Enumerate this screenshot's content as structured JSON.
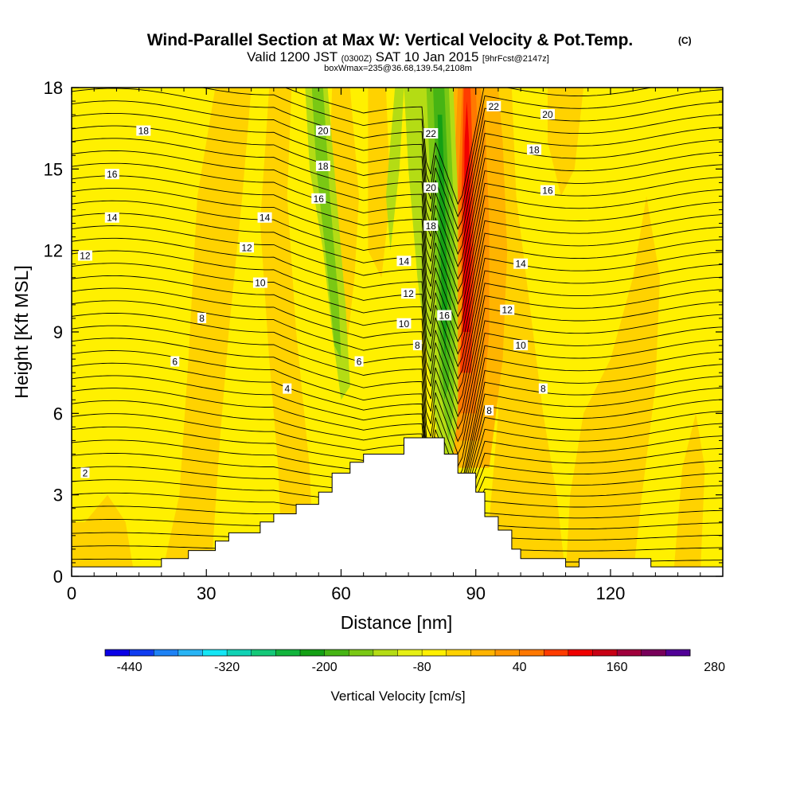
{
  "title": "Wind-Parallel Section at Max W: Vertical Velocity & Pot.Temp.",
  "title_mark": "(C)",
  "subtitle": {
    "a": "Valid 1200 JST",
    "b": "(0300Z)",
    "c": "SAT 10 Jan 2015",
    "d": "[9hrFcst@2147z]"
  },
  "subtitle2": "boxWmax=235@36.68,139.54,2108m",
  "chart_data": {
    "type": "contour",
    "xlabel": "Distance [nm]",
    "ylabel": "Height [Kft MSL]",
    "xlim": [
      0,
      145
    ],
    "ylim": [
      0,
      18
    ],
    "xticks": [
      0,
      30,
      60,
      90,
      120
    ],
    "yticks": [
      0,
      3,
      6,
      9,
      12,
      15,
      18
    ],
    "terrain": [
      [
        0,
        0.35
      ],
      [
        20,
        0.35
      ],
      [
        20,
        0.65
      ],
      [
        26,
        0.65
      ],
      [
        26,
        0.95
      ],
      [
        32,
        0.95
      ],
      [
        32,
        1.3
      ],
      [
        35,
        1.3
      ],
      [
        35,
        1.6
      ],
      [
        42,
        1.6
      ],
      [
        42,
        2.0
      ],
      [
        45,
        2.0
      ],
      [
        45,
        2.3
      ],
      [
        50,
        2.3
      ],
      [
        50,
        2.65
      ],
      [
        55,
        2.65
      ],
      [
        55,
        3.1
      ],
      [
        58,
        3.1
      ],
      [
        58,
        3.8
      ],
      [
        62,
        3.8
      ],
      [
        62,
        4.2
      ],
      [
        65,
        4.2
      ],
      [
        65,
        4.5
      ],
      [
        74,
        4.5
      ],
      [
        74,
        5.1
      ],
      [
        83,
        5.1
      ],
      [
        83,
        4.5
      ],
      [
        86,
        4.5
      ],
      [
        86,
        3.8
      ],
      [
        90,
        3.8
      ],
      [
        90,
        3.1
      ],
      [
        92,
        3.1
      ],
      [
        92,
        2.2
      ],
      [
        95,
        2.2
      ],
      [
        95,
        1.7
      ],
      [
        98,
        1.7
      ],
      [
        98,
        1.0
      ],
      [
        100,
        1.0
      ],
      [
        100,
        0.65
      ],
      [
        110,
        0.65
      ],
      [
        110,
        0.35
      ],
      [
        113,
        0.35
      ],
      [
        113,
        0.65
      ],
      [
        129,
        0.65
      ],
      [
        129,
        0.35
      ],
      [
        145,
        0.35
      ]
    ],
    "w_colorbar": {
      "title": "Vertical Velocity [cm/s]",
      "units": "cm/s",
      "tick_labels": [
        "-440",
        "-320",
        "-200",
        "-80",
        "40",
        "160",
        "280"
      ],
      "colors": [
        "#0a00e6",
        "#0f3cf0",
        "#1e82f5",
        "#28b4f5",
        "#14e6f5",
        "#10d2b4",
        "#14c878",
        "#12b43c",
        "#14a014",
        "#46b414",
        "#7ac814",
        "#b4dc14",
        "#e6f014",
        "#fff000",
        "#ffd200",
        "#ffb400",
        "#ff9600",
        "#ff7800",
        "#ff3c00",
        "#f00000",
        "#c80014",
        "#a0003c",
        "#78005a",
        "#500096"
      ]
    },
    "w_features": [
      {
        "type": "updraft (orange/red)",
        "approx_x_nm": [
          84,
          93
        ],
        "approx_height_kft": [
          5,
          18
        ],
        "peak_cm_s": 235
      },
      {
        "type": "downdraft (green)",
        "approx_x_nm": [
          74,
          86
        ],
        "approx_height_kft": [
          5,
          18
        ]
      },
      {
        "type": "weak descent (green)",
        "approx_x_nm": [
          52,
          62
        ],
        "approx_height_kft": [
          7,
          18
        ]
      }
    ],
    "theta_contour_labels": [
      {
        "x": 3,
        "y": 3.8,
        "text": "2"
      },
      {
        "x": 48,
        "y": 6.9,
        "text": "4"
      },
      {
        "x": 23,
        "y": 7.9,
        "text": "6"
      },
      {
        "x": 64,
        "y": 7.9,
        "text": "6"
      },
      {
        "x": 29,
        "y": 9.5,
        "text": "8"
      },
      {
        "x": 77,
        "y": 8.5,
        "text": "8"
      },
      {
        "x": 93,
        "y": 6.1,
        "text": "8"
      },
      {
        "x": 105,
        "y": 6.9,
        "text": "8"
      },
      {
        "x": 42,
        "y": 10.8,
        "text": "10"
      },
      {
        "x": 74,
        "y": 9.3,
        "text": "10"
      },
      {
        "x": 100,
        "y": 8.5,
        "text": "10"
      },
      {
        "x": 3,
        "y": 11.8,
        "text": "12"
      },
      {
        "x": 39,
        "y": 12.1,
        "text": "12"
      },
      {
        "x": 75,
        "y": 10.4,
        "text": "12"
      },
      {
        "x": 97,
        "y": 9.8,
        "text": "12"
      },
      {
        "x": 9,
        "y": 13.2,
        "text": "14"
      },
      {
        "x": 43,
        "y": 13.2,
        "text": "14"
      },
      {
        "x": 74,
        "y": 11.6,
        "text": "14"
      },
      {
        "x": 100,
        "y": 11.5,
        "text": "14"
      },
      {
        "x": 9,
        "y": 14.8,
        "text": "16"
      },
      {
        "x": 55,
        "y": 13.9,
        "text": "16"
      },
      {
        "x": 83,
        "y": 9.6,
        "text": "16"
      },
      {
        "x": 106,
        "y": 14.2,
        "text": "16"
      },
      {
        "x": 16,
        "y": 16.4,
        "text": "18"
      },
      {
        "x": 56,
        "y": 15.1,
        "text": "18"
      },
      {
        "x": 80,
        "y": 12.9,
        "text": "18"
      },
      {
        "x": 103,
        "y": 15.7,
        "text": "18"
      },
      {
        "x": 56,
        "y": 16.4,
        "text": "20"
      },
      {
        "x": 80,
        "y": 14.3,
        "text": "20"
      },
      {
        "x": 106,
        "y": 17.0,
        "text": "20"
      },
      {
        "x": 80,
        "y": 16.3,
        "text": "22"
      },
      {
        "x": 94,
        "y": 17.3,
        "text": "22"
      }
    ]
  }
}
